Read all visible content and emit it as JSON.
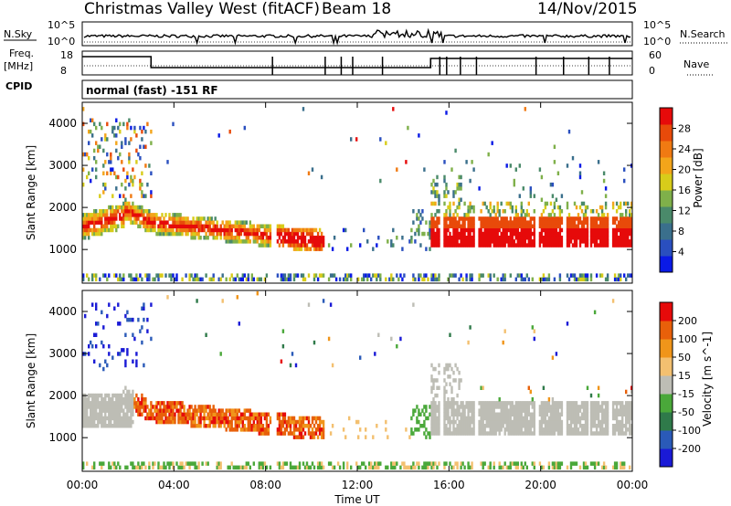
{
  "header": {
    "station": "Christmas Valley West (fitACF)",
    "beam": "Beam 18",
    "date": "14/Nov/2015"
  },
  "colors": {
    "power_scale": [
      "#0a1ae6",
      "#2a4fbf",
      "#3a6f8c",
      "#4a8a6a",
      "#7fb04a",
      "#d8cc1a",
      "#f3a51a",
      "#f07a12",
      "#e84a0a",
      "#e60a0a"
    ],
    "velocity_scale": [
      "#1a1ad6",
      "#2a5ab8",
      "#2f7a4a",
      "#4aa83a",
      "#bdbdb5",
      "#f3c070",
      "#f0951a",
      "#e8600a",
      "#e60a0a"
    ],
    "ground": "#bdbdb5"
  },
  "chart_data": [
    {
      "type": "line",
      "name": "noise-panel",
      "ylabel_left": "N.Sky",
      "ylabel_right": "N.Search",
      "yticks_left": [
        "10^5",
        "10^0"
      ],
      "yticks_right": [
        "10^5",
        "10^0"
      ]
    },
    {
      "type": "line",
      "name": "frequency-panel",
      "ylabel_left_top": "Freq.",
      "ylabel_left_unit": "[MHz]",
      "ylabel_right": "Nave",
      "yticks_left": [
        "18",
        "8"
      ],
      "yticks_right": [
        "60",
        "0"
      ],
      "left_extra": "CPID"
    },
    {
      "type": "heatmap",
      "name": "power-panel",
      "mode_label": "normal (fast) -151 RF",
      "ylabel": "Slant Range [km]",
      "ylim": [
        200,
        4500
      ],
      "yticks": [
        1000,
        2000,
        3000,
        4000
      ],
      "colorbar_label": "Power [dB]",
      "colorbar_ticks": [
        "28",
        "24",
        "20",
        "16",
        "12",
        "8",
        "4"
      ]
    },
    {
      "type": "heatmap",
      "name": "velocity-panel",
      "ylabel": "Slant Range [km]",
      "ylim": [
        200,
        4500
      ],
      "yticks": [
        1000,
        2000,
        3000,
        4000
      ],
      "colorbar_label": "Velocity [m s^-1]",
      "colorbar_ticks": [
        "200",
        "100",
        "50",
        "15",
        "-15",
        "-50",
        "-100",
        "-200"
      ]
    }
  ],
  "xaxis": {
    "label": "Time UT",
    "ticks": [
      "00:00",
      "04:00",
      "08:00",
      "12:00",
      "16:00",
      "20:00",
      "00:00"
    ]
  }
}
